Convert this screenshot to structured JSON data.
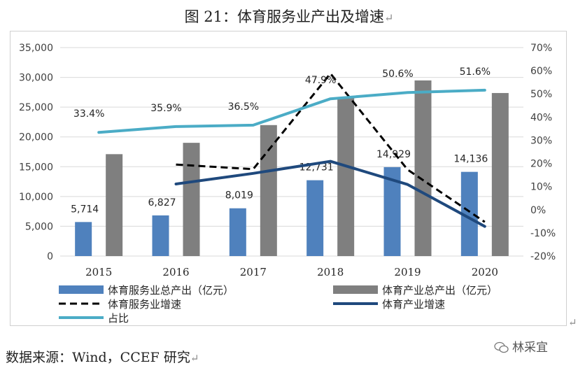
{
  "title": "图 21：体育服务业产出及增速",
  "source": "数据来源：Wind，CCEF 研究",
  "watermark": "林采宜",
  "chart_data": {
    "type": "bar",
    "categories": [
      "2015",
      "2016",
      "2017",
      "2018",
      "2019",
      "2020"
    ],
    "y_left": {
      "min": 0,
      "max": 35000,
      "ticks": [
        "0",
        "5,000",
        "10,000",
        "15,000",
        "20,000",
        "25,000",
        "30,000",
        "35,000"
      ]
    },
    "y_right": {
      "min": -20,
      "max": 70,
      "ticks": [
        "-20%",
        "-10%",
        "0%",
        "10%",
        "20%",
        "30%",
        "40%",
        "50%",
        "60%",
        "70%"
      ]
    },
    "series": [
      {
        "name": "体育服务业总产出（亿元）",
        "type": "bar",
        "axis": "left",
        "color": "#4f81bd",
        "values": [
          5714,
          6827,
          8019,
          12731,
          14929,
          14136
        ],
        "labels": [
          "5,714",
          "6,827",
          "8,019",
          "12,731",
          "14,929",
          "14,136"
        ]
      },
      {
        "name": "体育产业总产出（亿元）",
        "type": "bar",
        "axis": "left",
        "color": "#7f7f7f",
        "values": [
          17107,
          19011,
          21988,
          26579,
          29483,
          27372
        ]
      },
      {
        "name": "体育服务业增速",
        "type": "line",
        "axis": "right",
        "color": "#000000",
        "dashed": true,
        "values": [
          null,
          19.5,
          17.5,
          58.8,
          17.3,
          -5.3
        ]
      },
      {
        "name": "体育产业增速",
        "type": "line",
        "axis": "right",
        "color": "#1f497d",
        "values": [
          null,
          11.1,
          15.7,
          20.9,
          10.9,
          -7.2
        ]
      },
      {
        "name": "占比",
        "type": "line",
        "axis": "right",
        "color": "#4bacc6",
        "values": [
          33.4,
          35.9,
          36.5,
          47.9,
          50.6,
          51.6
        ],
        "labels": [
          "33.4%",
          "35.9%",
          "36.5%",
          "47.9%",
          "50.6%",
          "51.6%"
        ]
      }
    ],
    "legend_position": "bottom",
    "grid": true
  }
}
